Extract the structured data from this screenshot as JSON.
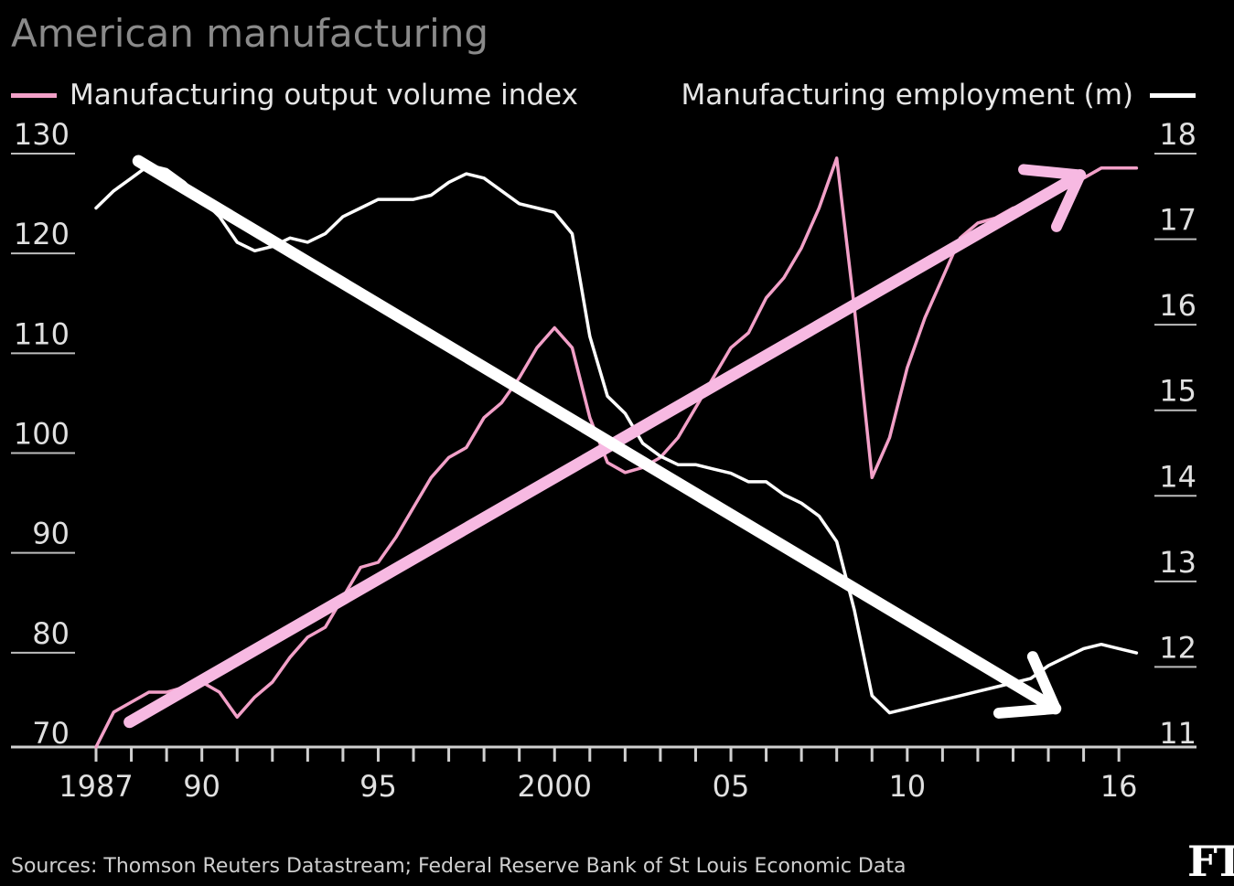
{
  "title": "American manufacturing",
  "source": "Sources: Thomson Reuters Datastream; Federal Reserve Bank of St Louis Economic Data",
  "logo": "FT",
  "colors": {
    "background": "#000000",
    "output_series": "#f2a0c8",
    "employment_series": "#ffffff",
    "up_arrow": "#f7b9e2",
    "down_arrow": "#ffffff"
  },
  "chart_data": {
    "type": "line",
    "xlim": [
      1987,
      2016.8
    ],
    "x_tick_years": [
      1987,
      1988,
      1989,
      1990,
      1991,
      1992,
      1993,
      1994,
      1995,
      1996,
      1997,
      1998,
      1999,
      2000,
      2001,
      2002,
      2003,
      2004,
      2005,
      2006,
      2007,
      2008,
      2009,
      2010,
      2011,
      2012,
      2013,
      2014,
      2015,
      2016
    ],
    "x_tick_labels": [
      {
        "year": 1987,
        "label": "1987"
      },
      {
        "year": 1990,
        "label": "90"
      },
      {
        "year": 1995,
        "label": "95"
      },
      {
        "year": 2000,
        "label": "2000"
      },
      {
        "year": 2005,
        "label": "05"
      },
      {
        "year": 2010,
        "label": "10"
      },
      {
        "year": 2016,
        "label": "16"
      }
    ],
    "y_left": {
      "ticks": [
        "130",
        "120",
        "110",
        "100",
        "90",
        "80",
        "70"
      ],
      "lim": [
        70,
        130
      ]
    },
    "y_right": {
      "ticks": [
        "18",
        "17",
        "16",
        "15",
        "14",
        "13",
        "12",
        "11"
      ],
      "lim": [
        11,
        18
      ]
    },
    "series": [
      {
        "name": "Manufacturing output volume index",
        "axis": "left",
        "x": [
          1987,
          1987.5,
          1988,
          1988.5,
          1989,
          1989.5,
          1990,
          1990.5,
          1991,
          1991.5,
          1992,
          1992.5,
          1993,
          1993.5,
          1994,
          1994.5,
          1995,
          1995.5,
          1996,
          1996.5,
          1997,
          1997.5,
          1998,
          1998.5,
          1999,
          1999.5,
          2000,
          2000.5,
          2001,
          2001.5,
          2002,
          2002.5,
          2003,
          2003.5,
          2004,
          2004.5,
          2005,
          2005.5,
          2006,
          2006.5,
          2007,
          2007.5,
          2008,
          2008.5,
          2009,
          2009.5,
          2010,
          2010.5,
          2011,
          2011.5,
          2012,
          2012.5,
          2013,
          2013.5,
          2014,
          2014.5,
          2015,
          2015.5,
          2016,
          2016.5
        ],
        "values": [
          70,
          73.5,
          74.5,
          75.5,
          75.5,
          76,
          76.5,
          75.5,
          73,
          75,
          76.5,
          79,
          81,
          82,
          85,
          88,
          88.5,
          91,
          94,
          97,
          99,
          100,
          103,
          104.5,
          107,
          110,
          112,
          110,
          103,
          98.5,
          97.5,
          98,
          99,
          101,
          104,
          107,
          110,
          111.5,
          115,
          117,
          120,
          124,
          129,
          114,
          97,
          101,
          108,
          113,
          117,
          121,
          122.5,
          123,
          124,
          124.5,
          125,
          126,
          127,
          128,
          128,
          128
        ]
      },
      {
        "name": "Manufacturing employment (m)",
        "axis": "right",
        "x": [
          1987,
          1987.5,
          1988,
          1988.5,
          1989,
          1989.5,
          1990,
          1990.5,
          1991,
          1991.5,
          1992,
          1992.5,
          1993,
          1993.5,
          1994,
          1994.5,
          1995,
          1995.5,
          1996,
          1996.5,
          1997,
          1997.5,
          1998,
          1998.5,
          1999,
          1999.5,
          2000,
          2000.5,
          2001,
          2001.5,
          2002,
          2002.5,
          2003,
          2003.5,
          2004,
          2004.5,
          2005,
          2005.5,
          2006,
          2006.5,
          2007,
          2007.5,
          2008,
          2008.5,
          2009,
          2009.5,
          2010,
          2010.5,
          2011,
          2011.5,
          2012,
          2012.5,
          2013,
          2013.5,
          2014,
          2014.5,
          2015,
          2015.5,
          2016,
          2016.5
        ],
        "values": [
          17.3,
          17.5,
          17.65,
          17.8,
          17.75,
          17.6,
          17.4,
          17.2,
          16.9,
          16.8,
          16.85,
          16.95,
          16.9,
          17.0,
          17.2,
          17.3,
          17.4,
          17.4,
          17.4,
          17.45,
          17.6,
          17.7,
          17.65,
          17.5,
          17.35,
          17.3,
          17.25,
          17.0,
          15.8,
          15.1,
          14.9,
          14.55,
          14.4,
          14.3,
          14.3,
          14.25,
          14.2,
          14.1,
          14.1,
          13.95,
          13.85,
          13.7,
          13.4,
          12.6,
          11.6,
          11.4,
          11.45,
          11.5,
          11.55,
          11.6,
          11.65,
          11.7,
          11.75,
          11.8,
          11.95,
          12.05,
          12.15,
          12.2,
          12.15,
          12.1
        ]
      }
    ],
    "annotations": [
      {
        "type": "arrow",
        "name": "output-trend-arrow",
        "from": {
          "x": 1987.95,
          "y": 72.5
        },
        "to": {
          "x": 2014.9,
          "y": 127.3
        },
        "axis": "left"
      },
      {
        "type": "arrow",
        "name": "employment-trend-arrow",
        "from": {
          "x": 1988.2,
          "y": 17.85
        },
        "to": {
          "x": 2014.2,
          "y": 11.45
        },
        "axis": "right"
      }
    ]
  },
  "legend": {
    "left_label": "Manufacturing output volume index",
    "right_label": "Manufacturing employment (m)"
  }
}
